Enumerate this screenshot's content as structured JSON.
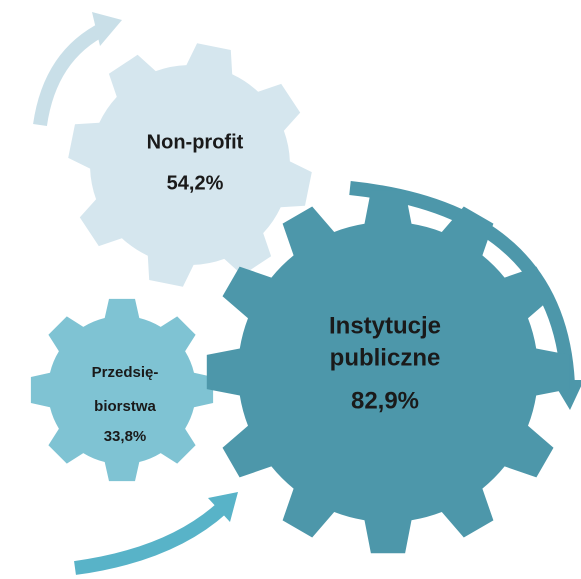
{
  "nodes": [
    {
      "lines": [
        "Non-profit"
      ],
      "value": "54,2%"
    },
    {
      "lines": [
        "Instytucje",
        "publiczne"
      ],
      "value": "82,9%"
    },
    {
      "lines": [
        "Przedsię-",
        "biorstwa"
      ],
      "value": "33,8%"
    }
  ]
}
